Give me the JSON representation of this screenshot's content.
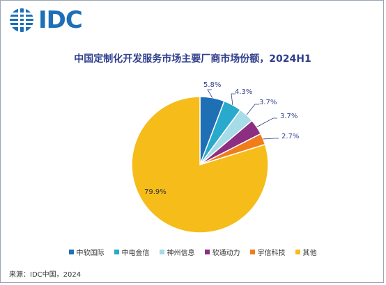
{
  "logo": {
    "text": "IDC"
  },
  "chart_data": {
    "type": "pie",
    "title": "中国定制化开发服务市场主要厂商市场份额，2024H1",
    "slices": [
      {
        "label": "中软国际",
        "value": 5.8,
        "display": "5.8%",
        "color": "#1f6fb5"
      },
      {
        "label": "中电金信",
        "value": 4.3,
        "display": "4.3%",
        "color": "#29a9cc"
      },
      {
        "label": "神州信息",
        "value": 3.7,
        "display": "3.7%",
        "color": "#a6dbe8"
      },
      {
        "label": "软通动力",
        "value": 3.7,
        "display": "3.7%",
        "color": "#8e2e82"
      },
      {
        "label": "宇信科技",
        "value": 2.7,
        "display": "2.7%",
        "color": "#f07d1a"
      },
      {
        "label": "其他",
        "value": 79.9,
        "display": "79.9%",
        "color": "#f5bc1a"
      }
    ],
    "legend_position": "bottom"
  },
  "source": "来源：IDC中国，2024"
}
